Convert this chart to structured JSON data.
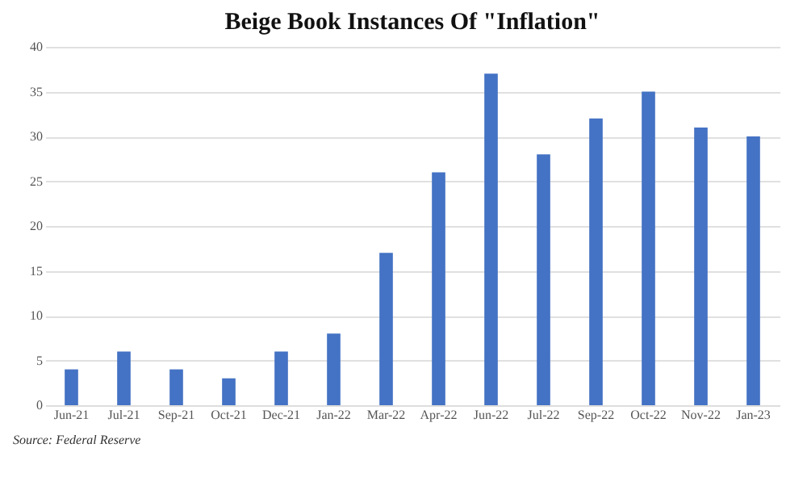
{
  "chart_data": {
    "type": "bar",
    "title": "Beige Book Instances Of  \"Inflation\"",
    "categories": [
      "Jun-21",
      "Jul-21",
      "Sep-21",
      "Oct-21",
      "Dec-21",
      "Jan-22",
      "Mar-22",
      "Apr-22",
      "Jun-22",
      "Jul-22",
      "Sep-22",
      "Oct-22",
      "Nov-22",
      "Jan-23"
    ],
    "values": [
      4,
      6,
      4,
      3,
      6,
      8,
      17,
      26,
      37,
      28,
      32,
      35,
      31,
      30
    ],
    "color": "#4472c4",
    "ylim": [
      0,
      40
    ],
    "yticks": [
      0,
      5,
      10,
      15,
      20,
      25,
      30,
      35,
      40
    ],
    "grid": "y",
    "annotations": [
      "Source: Federal Reserve"
    ]
  }
}
